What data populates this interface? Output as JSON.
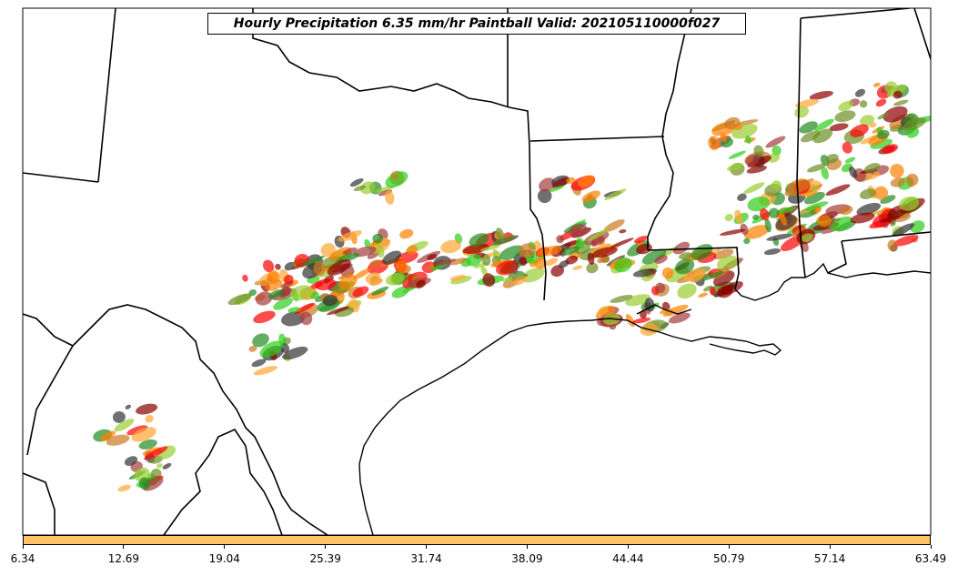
{
  "title": "Hourly Precipitation 6.35 mm/hr Paintball Valid: 202105110000f027",
  "colorbar": {
    "color": "#ffc266",
    "ticks": [
      "6.34",
      "12.69",
      "19.04",
      "25.39",
      "31.74",
      "38.09",
      "44.44",
      "50.79",
      "57.14",
      "63.49"
    ]
  },
  "member_colors": [
    "#ff0000",
    "#ff8000",
    "#ffa533",
    "#8b0000",
    "#a23c3c",
    "#228b22",
    "#2ecc1a",
    "#6b8e23",
    "#9acd32",
    "#333333",
    "#cc7722"
  ]
}
